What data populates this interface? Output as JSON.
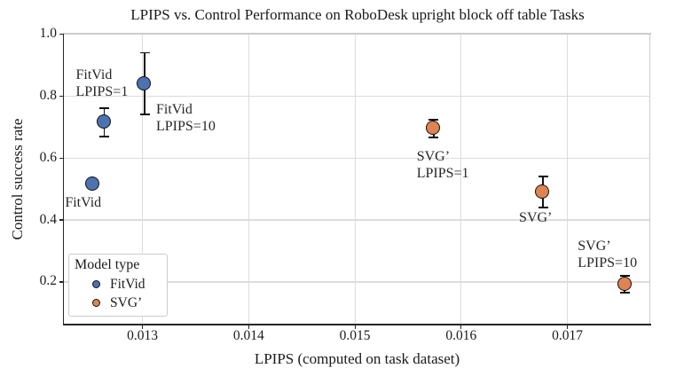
{
  "figure": {
    "title": "LPIPS vs. Control Performance on RoboDesk upright block off table Tasks",
    "xlabel": "LPIPS (computed on task dataset)",
    "ylabel": "Control success rate"
  },
  "legend": {
    "title": "Model type",
    "items": [
      {
        "label": "FitVid",
        "color": "#4C72B0"
      },
      {
        "label": "SVG’",
        "color": "#DD8452"
      }
    ]
  },
  "chart_data": {
    "type": "scatter",
    "title": "LPIPS vs. Control Performance on RoboDesk upright block off table Tasks",
    "xlabel": "LPIPS (computed on task dataset)",
    "ylabel": "Control success rate",
    "xlim": [
      0.01226,
      0.01778
    ],
    "ylim": [
      0.0624,
      1.0
    ],
    "xticks": [
      0.013,
      0.014,
      0.015,
      0.016,
      0.017
    ],
    "xtick_labels": [
      "0.013",
      "0.014",
      "0.015",
      "0.016",
      "0.017"
    ],
    "yticks": [
      0.2,
      0.4,
      0.6,
      0.8,
      1.0
    ],
    "ytick_labels": [
      "0.2",
      "0.4",
      "0.6",
      "0.8",
      "1.0"
    ],
    "grid": true,
    "legend_position": "lower left",
    "error_bar_color": "#111111",
    "series": [
      {
        "name": "FitVid",
        "color": "#4C72B0",
        "points": [
          {
            "x": 0.01253,
            "y": 0.515,
            "yerr": null,
            "label_lines": [
              "FitVid"
            ],
            "label_dx": -31,
            "label_dy": 12
          },
          {
            "x": 0.01264,
            "y": 0.715,
            "yerr": 0.045,
            "label_lines": [
              "FitVid",
              "LPIPS=1"
            ],
            "label_dx": -32,
            "label_dy": -62
          },
          {
            "x": 0.01302,
            "y": 0.84,
            "yerr": 0.1,
            "label_lines": [
              "FitVid",
              "LPIPS=10"
            ],
            "label_dx": 13,
            "label_dy": 21
          }
        ]
      },
      {
        "name": "SVG’",
        "color": "#DD8452",
        "points": [
          {
            "x": 0.01574,
            "y": 0.695,
            "yerr": 0.028,
            "label_lines": [
              "SVG’",
              "LPIPS=1"
            ],
            "label_dx": -19,
            "label_dy": 23
          },
          {
            "x": 0.01677,
            "y": 0.49,
            "yerr": 0.05,
            "label_lines": [
              "SVG’"
            ],
            "label_dx": -27,
            "label_dy": 20
          },
          {
            "x": 0.01754,
            "y": 0.193,
            "yerr": 0.027,
            "label_lines": [
              "SVG’",
              "LPIPS=10"
            ],
            "label_dx": -53,
            "label_dy": -51
          }
        ]
      }
    ]
  }
}
